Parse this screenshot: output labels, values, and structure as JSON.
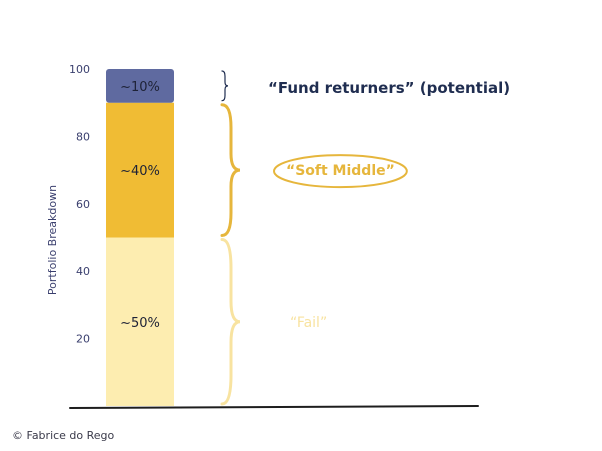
{
  "chart_data": {
    "type": "bar",
    "stacked": true,
    "ylabel": "Portfolio Breakdown",
    "ylim": [
      0,
      100
    ],
    "yticks": [
      20,
      40,
      60,
      80,
      100
    ],
    "grid": false,
    "segments": [
      {
        "label": "~50%",
        "from": 0,
        "to": 50,
        "color": "#fdedb0",
        "annotation": "“Fail”",
        "annotation_color": "#f8e3a0"
      },
      {
        "label": "~40%",
        "from": 50,
        "to": 90,
        "color": "#f0bc34",
        "annotation": "“Soft Middle”",
        "annotation_color": "#e6b63c"
      },
      {
        "label": "~10%",
        "from": 90,
        "to": 100,
        "color": "#5f6aa0",
        "annotation": "“Fund returners” (potential)",
        "annotation_color": "#1f2d50"
      }
    ]
  },
  "footer": {
    "copyright_symbol": "©",
    "author": "Fabrice do Rego"
  }
}
